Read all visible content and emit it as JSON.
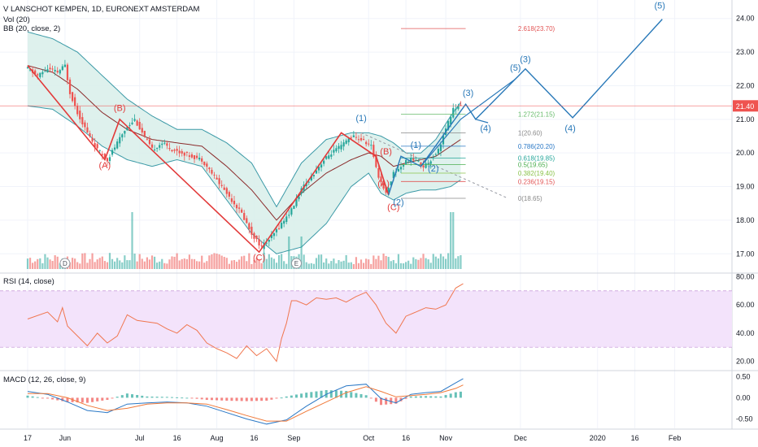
{
  "header": {
    "symbol_line": "V LANSCHOT KEMPEN, 1D, EURONEXT AMSTERDAM",
    "vol_line": "Vol (20)",
    "bb_line": "BB (20, close, 2)",
    "rsi_line": "RSI (14, close)",
    "macd_line": "MACD (12, 26, close, 9)"
  },
  "colors": {
    "up": "#26a69a",
    "down": "#ef5350",
    "bb_band": "#3c9aa7",
    "bb_fill": "#d8eeea",
    "bb_basis": "#8b2c2c",
    "wave_red": "#e23a3a",
    "wave_blue": "#2878b8",
    "rsi": "#f0764f",
    "rsi_band": "#f3e3fb",
    "macd": "#2a78c6",
    "signal": "#f07a3a",
    "price_tag": "#ef5350",
    "grid": "#f0f3fa",
    "axis_text": "#131722"
  },
  "chart_data": [
    {
      "type": "candlestick",
      "title": "V LANSCHOT KEMPEN, 1D, EURONEXT AMSTERDAM",
      "x_axis": {
        "type": "date",
        "ticks": [
          "17",
          "Jun",
          "Jul",
          "16",
          "Aug",
          "16",
          "Sep",
          "Oct",
          "16",
          "Nov",
          "Dec",
          "2020",
          "16",
          "Feb"
        ],
        "tick_days": [
          0,
          15,
          45,
          60,
          76,
          91,
          107,
          137,
          152,
          168,
          198,
          229,
          244,
          260
        ]
      },
      "y_axis": {
        "scale": "linear",
        "ylim": [
          16.45,
          24.55
        ],
        "ticks": [
          "17.00",
          "18.00",
          "19.00",
          "20.00",
          "21.00",
          "22.00",
          "23.00",
          "24.00"
        ],
        "tick_values": [
          17,
          18,
          19,
          20,
          21,
          22,
          23,
          24
        ]
      },
      "last_price_label": "21.40",
      "last_price": 21.4,
      "price_path": [
        {
          "day": 0,
          "close": 22.5
        },
        {
          "day": 4,
          "close": 22.3
        },
        {
          "day": 8,
          "close": 22.5
        },
        {
          "day": 12,
          "close": 22.4
        },
        {
          "day": 15,
          "close": 22.6
        },
        {
          "day": 17,
          "close": 21.8
        },
        {
          "day": 20,
          "close": 21.2
        },
        {
          "day": 24,
          "close": 20.6
        },
        {
          "day": 28,
          "close": 20.1
        },
        {
          "day": 32,
          "close": 19.8
        },
        {
          "day": 36,
          "close": 20.3
        },
        {
          "day": 40,
          "close": 20.8
        },
        {
          "day": 43,
          "close": 21.0
        },
        {
          "day": 46,
          "close": 20.6
        },
        {
          "day": 50,
          "close": 20.1
        },
        {
          "day": 54,
          "close": 20.3
        },
        {
          "day": 58,
          "close": 20.1
        },
        {
          "day": 62,
          "close": 20.0
        },
        {
          "day": 66,
          "close": 19.9
        },
        {
          "day": 70,
          "close": 19.8
        },
        {
          "day": 74,
          "close": 19.4
        },
        {
          "day": 78,
          "close": 19.0
        },
        {
          "day": 82,
          "close": 18.6
        },
        {
          "day": 86,
          "close": 18.2
        },
        {
          "day": 90,
          "close": 17.6
        },
        {
          "day": 94,
          "close": 17.2
        },
        {
          "day": 98,
          "close": 17.5
        },
        {
          "day": 102,
          "close": 17.9
        },
        {
          "day": 106,
          "close": 18.3
        },
        {
          "day": 110,
          "close": 18.9
        },
        {
          "day": 114,
          "close": 19.3
        },
        {
          "day": 118,
          "close": 19.7
        },
        {
          "day": 122,
          "close": 20.0
        },
        {
          "day": 126,
          "close": 20.2
        },
        {
          "day": 130,
          "close": 20.5
        },
        {
          "day": 134,
          "close": 20.4
        },
        {
          "day": 138,
          "close": 20.2
        },
        {
          "day": 141,
          "close": 19.3
        },
        {
          "day": 144,
          "close": 18.8
        },
        {
          "day": 147,
          "close": 19.4
        },
        {
          "day": 150,
          "close": 19.6
        },
        {
          "day": 153,
          "close": 19.8
        },
        {
          "day": 156,
          "close": 19.8
        },
        {
          "day": 159,
          "close": 19.6
        },
        {
          "day": 162,
          "close": 19.8
        },
        {
          "day": 165,
          "close": 20.1
        },
        {
          "day": 168,
          "close": 20.7
        },
        {
          "day": 171,
          "close": 21.3
        },
        {
          "day": 174,
          "close": 21.4
        }
      ],
      "bollinger": {
        "days": [
          0,
          10,
          20,
          30,
          40,
          50,
          60,
          70,
          80,
          90,
          100,
          110,
          120,
          130,
          137,
          142,
          147,
          152,
          158,
          164,
          170,
          174
        ],
        "upper": [
          23.6,
          23.4,
          23.0,
          22.3,
          21.6,
          21.1,
          20.7,
          20.7,
          20.3,
          19.7,
          18.4,
          19.7,
          20.4,
          20.6,
          20.6,
          20.5,
          20.3,
          20.0,
          20.0,
          20.4,
          21.1,
          21.5
        ],
        "basis": [
          22.6,
          22.4,
          21.9,
          21.2,
          20.7,
          20.4,
          20.3,
          20.2,
          19.6,
          18.9,
          18.0,
          18.8,
          19.4,
          19.8,
          20.0,
          19.9,
          19.6,
          19.7,
          19.8,
          19.9,
          20.2,
          20.4
        ],
        "lower": [
          21.4,
          21.3,
          20.8,
          20.2,
          19.8,
          19.6,
          19.8,
          19.6,
          18.6,
          17.6,
          17.0,
          17.2,
          17.9,
          19.0,
          19.4,
          18.8,
          18.6,
          18.8,
          18.9,
          18.9,
          19.0,
          19.2
        ]
      },
      "wave_labels_red": [
        {
          "label": "(A)",
          "day": 31,
          "value": 19.55
        },
        {
          "label": "(B)",
          "day": 37,
          "value": 21.25
        },
        {
          "label": "(C)",
          "day": 93,
          "value": 16.8
        },
        {
          "label": "(B)",
          "day": 144,
          "value": 19.95
        },
        {
          "label": "(A)",
          "day": 143,
          "value": 19.0
        },
        {
          "label": "(C)",
          "day": 147,
          "value": 18.3
        }
      ],
      "wave_labels_blue": [
        {
          "label": "(1)",
          "day": 134,
          "value": 20.95
        },
        {
          "label": "(1)",
          "day": 156,
          "value": 20.15
        },
        {
          "label": "(2)",
          "day": 163,
          "value": 19.45
        },
        {
          "label": "(2)",
          "day": 149,
          "value": 18.45
        },
        {
          "label": "(3)",
          "day": 177,
          "value": 21.7
        },
        {
          "label": "(4)",
          "day": 184,
          "value": 20.65
        },
        {
          "label": "(5)",
          "day": 196,
          "value": 22.45
        },
        {
          "label": "(3)",
          "day": 200,
          "value": 22.7
        },
        {
          "label": "(4)",
          "day": 218,
          "value": 20.65
        },
        {
          "label": "(5)",
          "day": 254,
          "value": 24.3
        }
      ],
      "fib_levels": [
        {
          "label": "2.618(23.70)",
          "value": 23.7,
          "color": "#e25555"
        },
        {
          "label": "1.272(21.15)",
          "value": 21.15,
          "color": "#66bb6a"
        },
        {
          "label": "1(20.60)",
          "value": 20.6,
          "color": "#888888"
        },
        {
          "label": "0.786(20.20)",
          "value": 20.2,
          "color": "#2a78c6"
        },
        {
          "label": "0.618(19.85)",
          "value": 19.85,
          "color": "#26a69a"
        },
        {
          "label": "0.5(19.65)",
          "value": 19.65,
          "color": "#4caf50"
        },
        {
          "label": "0.382(19.40)",
          "value": 19.4,
          "color": "#8bc34a"
        },
        {
          "label": "0.236(19.15)",
          "value": 19.15,
          "color": "#e25555"
        },
        {
          "label": "0(18.65)",
          "value": 18.65,
          "color": "#888888"
        }
      ],
      "event_markers": [
        {
          "label": "D",
          "day": 15
        },
        {
          "label": "E",
          "day": 108
        }
      ]
    },
    {
      "type": "line",
      "title": "RSI (14, close)",
      "y_axis": {
        "ylim": [
          14,
          82
        ],
        "ticks": [
          "20.00",
          "40.00",
          "60.00",
          "80.00"
        ],
        "tick_values": [
          20,
          40,
          60,
          80
        ]
      },
      "band": [
        30,
        70
      ],
      "days": [
        0,
        8,
        12,
        14,
        16,
        20,
        24,
        28,
        32,
        36,
        40,
        44,
        48,
        52,
        56,
        60,
        64,
        68,
        72,
        76,
        80,
        84,
        88,
        92,
        96,
        100,
        102,
        104,
        106,
        108,
        112,
        116,
        120,
        124,
        128,
        132,
        136,
        140,
        144,
        148,
        152,
        156,
        160,
        164,
        168,
        172,
        175
      ],
      "values": [
        50,
        55,
        48,
        58,
        45,
        38,
        31,
        40,
        33,
        38,
        53,
        49,
        48,
        47,
        43,
        40,
        46,
        42,
        33,
        29,
        26,
        22,
        31,
        24,
        29,
        20,
        36,
        47,
        63,
        63,
        60,
        65,
        64,
        65,
        62,
        66,
        69,
        60,
        47,
        40,
        52,
        55,
        58,
        57,
        60,
        72,
        75
      ]
    },
    {
      "type": "line",
      "title": "MACD (12, 26, close, 9)",
      "y_axis": {
        "ylim": [
          -0.72,
          0.62
        ],
        "ticks": [
          "0.50",
          "0.00",
          "-0.50"
        ],
        "tick_values": [
          0.5,
          0,
          -0.5
        ]
      },
      "days": [
        0,
        8,
        16,
        24,
        32,
        40,
        48,
        56,
        64,
        72,
        80,
        88,
        96,
        104,
        112,
        120,
        128,
        136,
        142,
        148,
        154,
        160,
        166,
        172,
        175
      ],
      "macd": [
        0.15,
        0.08,
        -0.1,
        -0.3,
        -0.35,
        -0.15,
        -0.12,
        -0.1,
        -0.12,
        -0.2,
        -0.35,
        -0.5,
        -0.62,
        -0.52,
        -0.2,
        0.08,
        0.28,
        0.32,
        -0.02,
        -0.12,
        0.08,
        0.12,
        0.15,
        0.35,
        0.45
      ],
      "signal": [
        0.1,
        0.1,
        0.0,
        -0.18,
        -0.3,
        -0.25,
        -0.15,
        -0.12,
        -0.12,
        -0.15,
        -0.28,
        -0.42,
        -0.55,
        -0.55,
        -0.32,
        -0.1,
        0.12,
        0.26,
        0.15,
        0.02,
        0.05,
        0.08,
        0.12,
        0.22,
        0.3
      ]
    }
  ]
}
